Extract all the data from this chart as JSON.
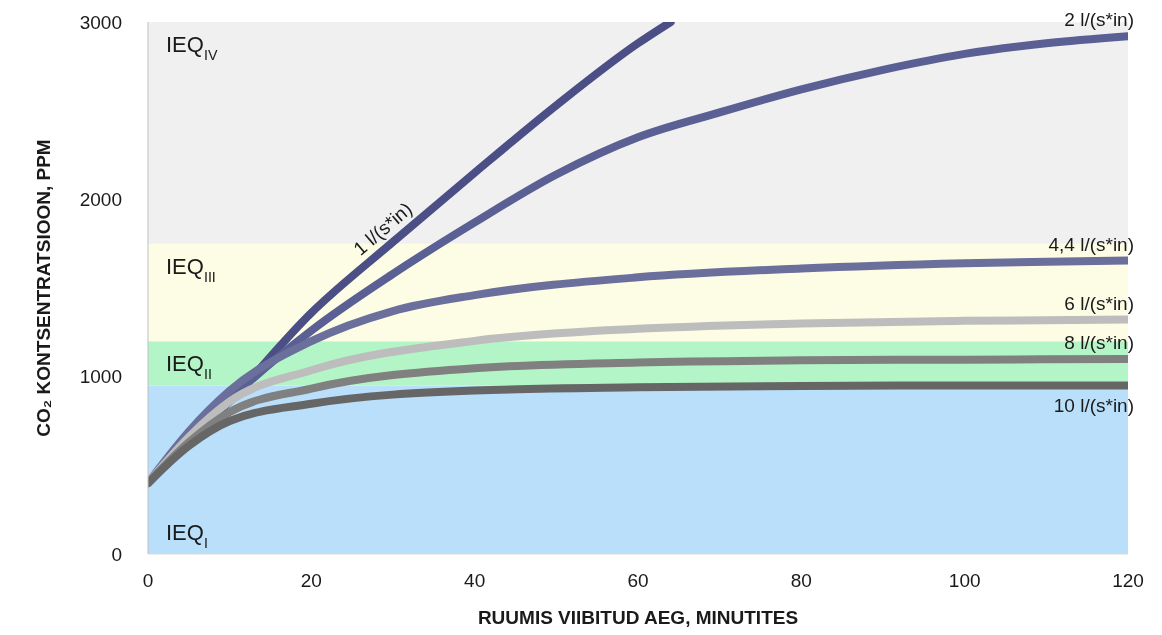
{
  "chart_data": {
    "type": "line",
    "xlabel": "RUUMIS VIIBITUD AEG, MINUTITES",
    "ylabel": "CO₂ KONTSENTRATSIOON, PPM",
    "xlim": [
      0,
      120
    ],
    "xticks": [
      0,
      20,
      40,
      60,
      80,
      100,
      120
    ],
    "ylim": [
      0,
      3000
    ],
    "yticks": [
      0,
      1000,
      2000,
      3000
    ],
    "grid": false,
    "legend": false,
    "marker": "none",
    "line_style": "solid",
    "bands": [
      {
        "axis": "y",
        "from": 0,
        "to": 950,
        "label": "IEQ$_{I}$",
        "color": "#b9dffb"
      },
      {
        "axis": "y",
        "from": 950,
        "to": 1200,
        "label": "IEQ$_{II}$",
        "color": "#b3f5c6"
      },
      {
        "axis": "y",
        "from": 1200,
        "to": 1750,
        "label": "IEQ$_{III}$",
        "color": "#fdfde6"
      },
      {
        "axis": "y",
        "from": 1750,
        "to": 3000,
        "label": "IEQ$_{IV}$",
        "color": "#f0f0f0"
      }
    ],
    "series": [
      {
        "name": "1 l/(s*in)",
        "color": "#4b4f86",
        "x": [
          0,
          5,
          10,
          20,
          30,
          40,
          50,
          60,
          64
        ],
        "values": [
          400,
          630,
          860,
          1360,
          1760,
          2150,
          2530,
          2880,
          3000
        ]
      },
      {
        "name": "2 l/(s*in)",
        "color": "#5a5f94",
        "x": [
          0,
          5,
          10,
          20,
          30,
          40,
          50,
          60,
          70,
          80,
          90,
          100,
          110,
          120
        ],
        "values": [
          400,
          640,
          870,
          1260,
          1580,
          1870,
          2140,
          2350,
          2490,
          2620,
          2730,
          2820,
          2880,
          2920
        ]
      },
      {
        "name": "4,4 l/(s*in)",
        "color": "#6b6f9c",
        "x": [
          0,
          5,
          10,
          20,
          30,
          40,
          60,
          80,
          100,
          120
        ],
        "values": [
          400,
          690,
          920,
          1200,
          1370,
          1460,
          1560,
          1610,
          1640,
          1655
        ]
      },
      {
        "name": "6 l/(s*in)",
        "color": "#bdbdbd",
        "x": [
          0,
          5,
          10,
          20,
          40,
          60,
          80,
          100,
          120
        ],
        "values": [
          400,
          660,
          860,
          1036,
          1202,
          1270,
          1300,
          1315,
          1322
        ]
      },
      {
        "name": "8 l/(s*in)",
        "color": "#808080",
        "x": [
          0,
          5,
          10,
          20,
          40,
          60,
          80,
          100,
          120
        ],
        "values": [
          400,
          630,
          800,
          933,
          1048,
          1080,
          1092,
          1096,
          1100
        ]
      },
      {
        "name": "10 l/(s*in)",
        "color": "#666666",
        "x": [
          0,
          5,
          10,
          20,
          40,
          60,
          80,
          100,
          120
        ],
        "values": [
          400,
          610,
          750,
          847,
          922,
          940,
          948,
          950,
          950
        ]
      }
    ]
  }
}
